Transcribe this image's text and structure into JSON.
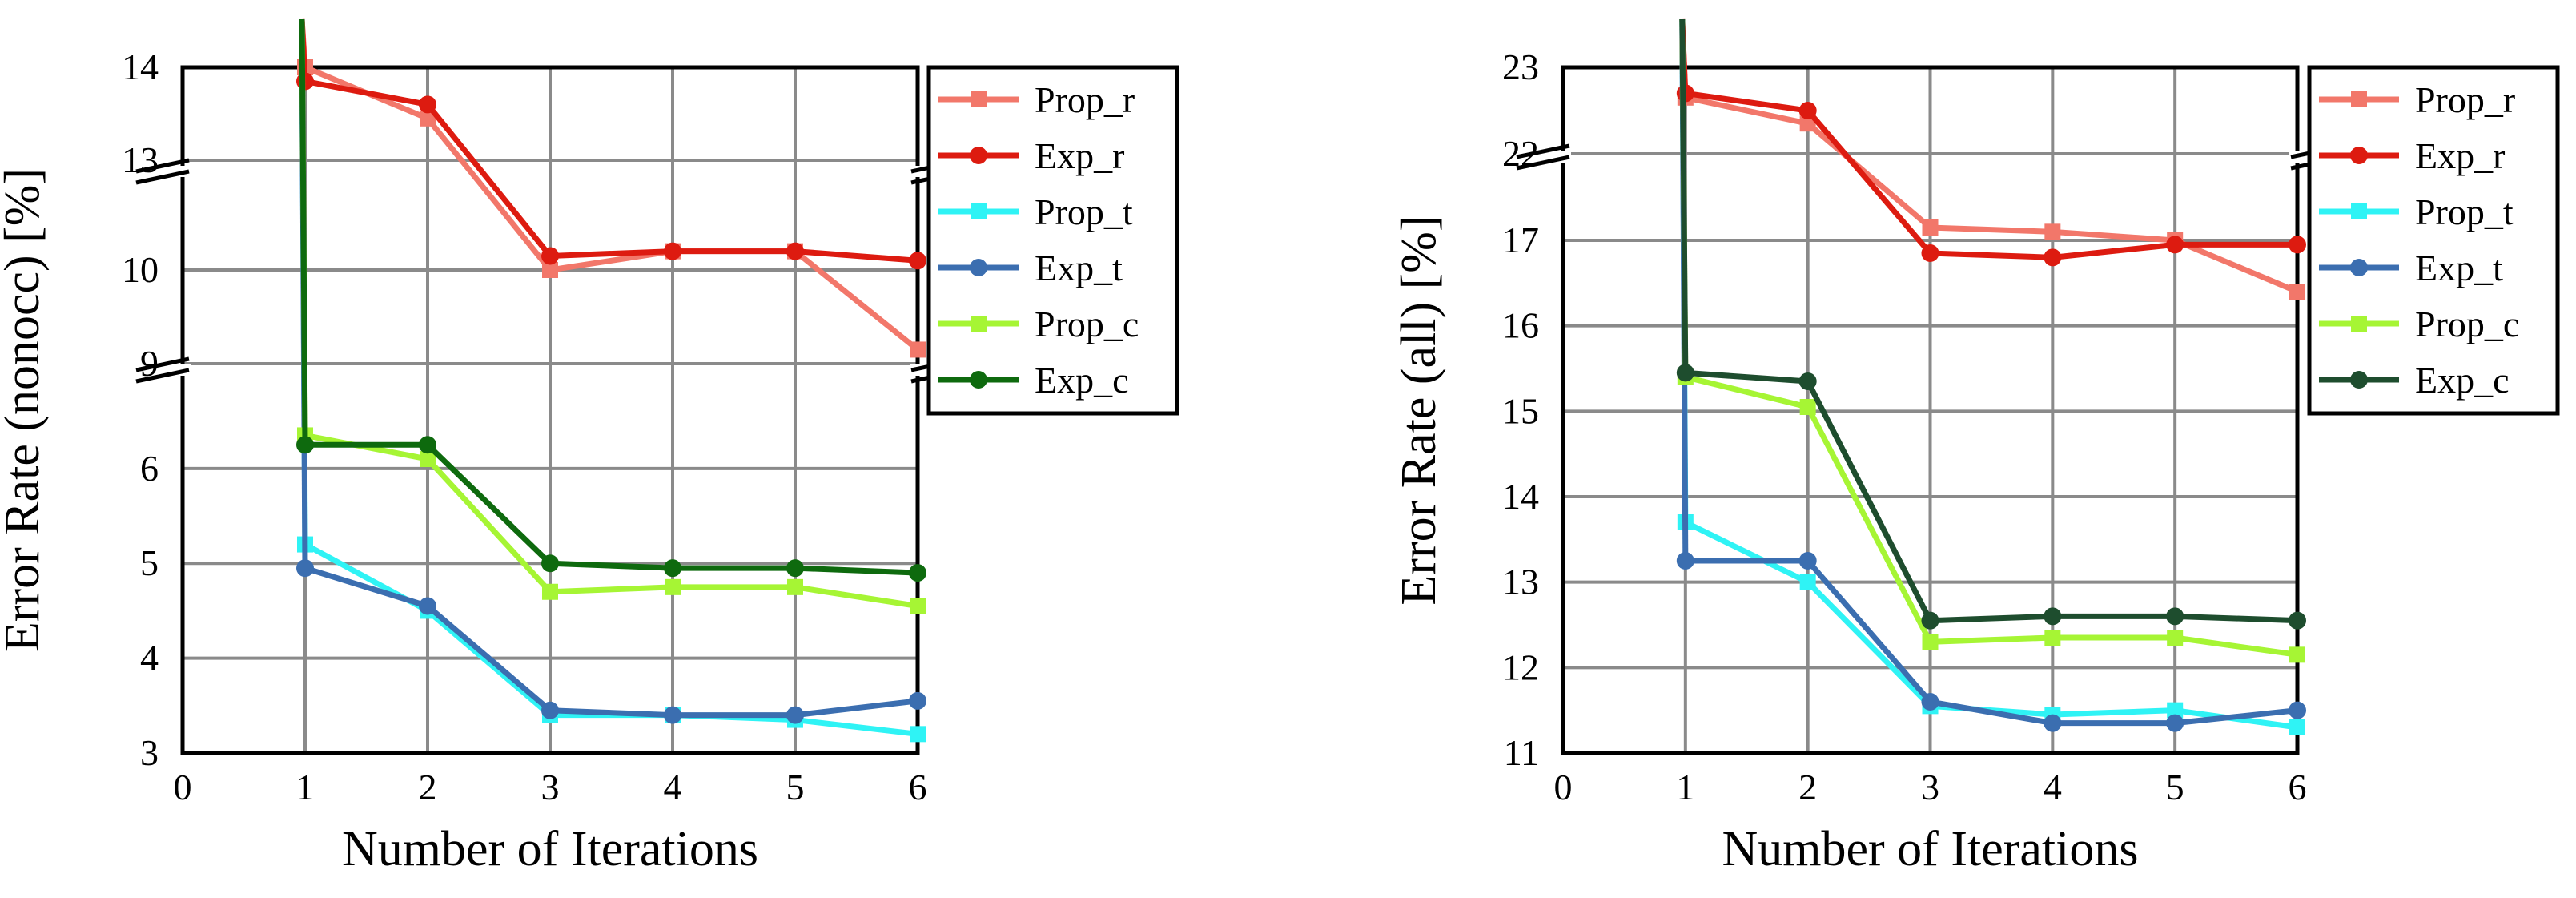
{
  "chart_data": [
    {
      "type": "line",
      "title": "",
      "xlabel": "Number of Iterations",
      "ylabel": "Error Rate (nonocc) [%]",
      "x_ticks": [
        "0",
        "1",
        "2",
        "3",
        "4",
        "5",
        "6"
      ],
      "xlim": [
        0,
        6
      ],
      "y_axis_break": true,
      "y_segments": [
        {
          "range": [
            13,
            14
          ],
          "ticks": [
            13,
            14
          ]
        },
        {
          "range": [
            9,
            10
          ],
          "ticks": [
            9,
            10
          ]
        },
        {
          "range": [
            3,
            6.7
          ],
          "ticks": [
            3,
            4,
            5,
            6
          ]
        }
      ],
      "grid": true,
      "legend_position": "right",
      "x": [
        1,
        2,
        3,
        4,
        5,
        6
      ],
      "series": [
        {
          "name": "Prop_r",
          "color": "#f2776a",
          "marker": "square",
          "values": [
            14.0,
            13.45,
            10.0,
            10.2,
            10.2,
            9.15
          ]
        },
        {
          "name": "Exp_r",
          "color": "#dd1b10",
          "marker": "circle",
          "values": [
            13.85,
            13.6,
            10.15,
            10.2,
            10.2,
            10.1
          ]
        },
        {
          "name": "Prop_t",
          "color": "#2ff3f5",
          "marker": "square",
          "values": [
            5.2,
            4.5,
            3.4,
            3.4,
            3.35,
            3.2
          ]
        },
        {
          "name": "Exp_t",
          "color": "#3b6eb0",
          "marker": "circle",
          "values": [
            4.95,
            4.55,
            3.45,
            3.4,
            3.4,
            3.55
          ]
        },
        {
          "name": "Prop_c",
          "color": "#a6f534",
          "marker": "square",
          "values": [
            6.35,
            6.1,
            4.7,
            4.75,
            4.75,
            4.55
          ]
        },
        {
          "name": "Exp_c",
          "color": "#0e6a0e",
          "marker": "circle",
          "values": [
            6.25,
            6.25,
            5.0,
            4.95,
            4.95,
            4.9
          ]
        }
      ]
    },
    {
      "type": "line",
      "title": "",
      "xlabel": "Number of Iterations",
      "ylabel": "Error Rate (all) [%]",
      "x_ticks": [
        "0",
        "1",
        "2",
        "3",
        "4",
        "5",
        "6"
      ],
      "xlim": [
        0,
        6
      ],
      "y_axis_break": true,
      "y_segments": [
        {
          "range": [
            22,
            23
          ],
          "ticks": [
            22,
            23
          ]
        },
        {
          "range": [
            11,
            17.9
          ],
          "ticks": [
            11,
            12,
            13,
            14,
            15,
            16,
            17
          ]
        }
      ],
      "grid": true,
      "legend_position": "right",
      "x": [
        1,
        2,
        3,
        4,
        5,
        6
      ],
      "series": [
        {
          "name": "Prop_r",
          "color": "#f2776a",
          "marker": "square",
          "values": [
            22.65,
            22.35,
            17.15,
            17.1,
            17.0,
            16.4
          ]
        },
        {
          "name": "Exp_r",
          "color": "#dd1b10",
          "marker": "circle",
          "values": [
            22.7,
            22.5,
            16.85,
            16.8,
            16.95,
            16.95
          ]
        },
        {
          "name": "Prop_t",
          "color": "#2ff3f5",
          "marker": "square",
          "values": [
            13.7,
            13.0,
            11.55,
            11.45,
            11.5,
            11.3
          ]
        },
        {
          "name": "Exp_t",
          "color": "#3b6eb0",
          "marker": "circle",
          "values": [
            13.25,
            13.25,
            11.6,
            11.35,
            11.35,
            11.5
          ]
        },
        {
          "name": "Prop_c",
          "color": "#a6f534",
          "marker": "square",
          "values": [
            15.4,
            15.05,
            12.3,
            12.35,
            12.35,
            12.15
          ]
        },
        {
          "name": "Exp_c",
          "color": "#1e4d2e",
          "marker": "circle",
          "values": [
            15.45,
            15.35,
            12.55,
            12.6,
            12.6,
            12.55
          ]
        }
      ]
    }
  ]
}
